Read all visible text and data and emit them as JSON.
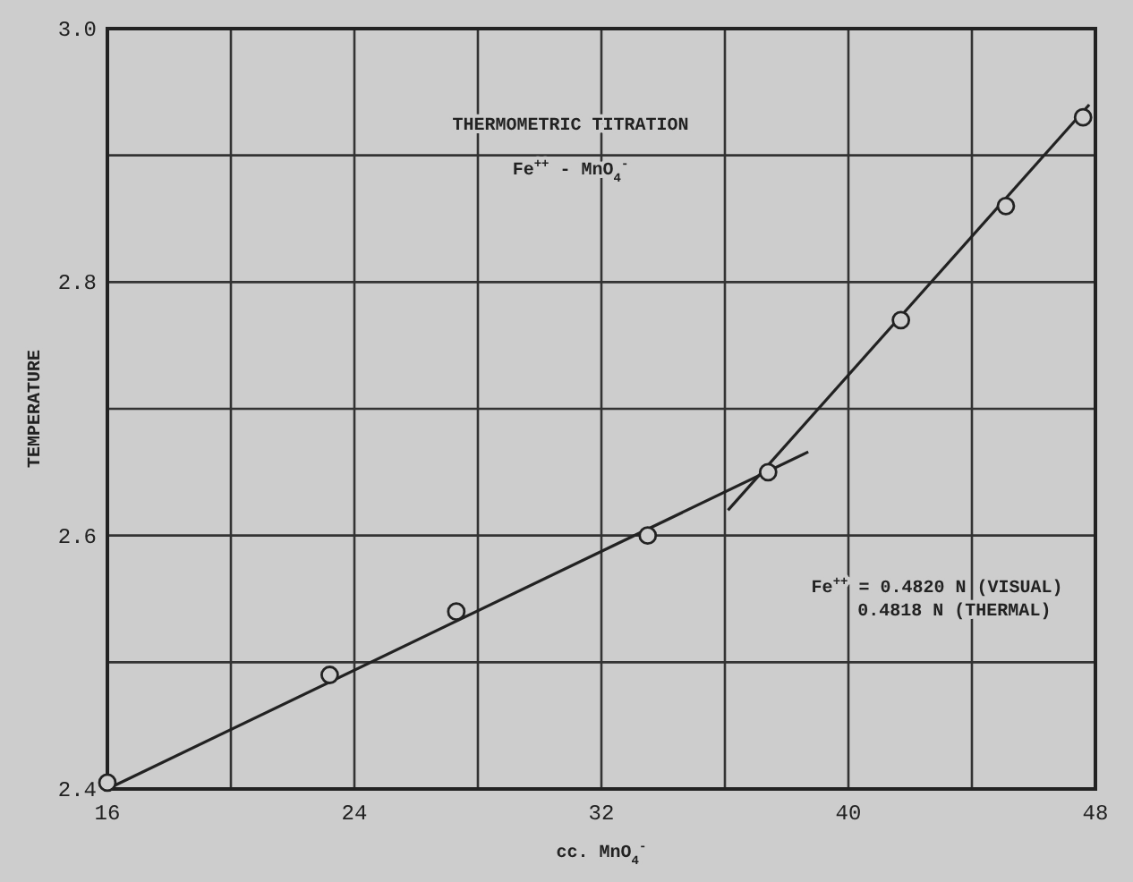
{
  "chart_data": {
    "type": "scatter",
    "title": "THERMOMETRIC TITRATION",
    "subtitle": "Fe$^{++}$ - MnO$_{4}$$^{-}$",
    "xlabel": "cc. MnO$_{4}$$^{-}$",
    "ylabel": "TEMPERATURE",
    "xlim": [
      16,
      48
    ],
    "ylim": [
      2.4,
      3.0
    ],
    "xticks": [
      16,
      {
        "value": 20,
        "label": null
      },
      24,
      {
        "value": 28,
        "label": null
      },
      32,
      {
        "value": 36,
        "label": null
      },
      40,
      {
        "value": 44,
        "label": null
      },
      48
    ],
    "yticks": [
      2.4,
      {
        "value": 2.5,
        "label": null
      },
      2.6,
      {
        "value": 2.7,
        "label": null
      },
      2.8,
      {
        "value": 2.9,
        "label": null
      },
      {
        "value": 3.0,
        "label": "3.0"
      }
    ],
    "grid": true,
    "marker": "circle",
    "series": [
      {
        "color": "#222222",
        "x": [
          16,
          23.2,
          27.3,
          33.5,
          37.4,
          41.7,
          45.1,
          47.6
        ],
        "values": [
          2.405,
          2.49,
          2.54,
          2.6,
          2.65,
          2.77,
          2.86,
          2.93
        ]
      },
      {
        "type": "line",
        "color": "#222222",
        "marker": "none",
        "x": [
          16,
          38.7
        ],
        "values": [
          2.4,
          2.666
        ]
      },
      {
        "type": "line",
        "color": "#222222",
        "marker": "none",
        "x": [
          36.1,
          47.8
        ],
        "values": [
          2.62,
          2.94
        ]
      }
    ],
    "annotations": [
      "Fe$^{++}$ =  0.4820 N (VISUAL)",
      "0.4818 N (THERMAL)"
    ]
  }
}
